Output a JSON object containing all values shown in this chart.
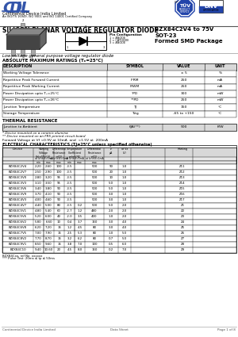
{
  "title_main": "SILICON PLANAR VOLTAGE REGULATOR DIODE",
  "title_part": "BZX84C2V4 to 75V",
  "package": "SOT-23",
  "package_sub": "Formed SMD Package",
  "company": "Continental Device India Limited",
  "company_sub": "An ISO/TS 16949, ISO 9001 and ISO 14001 Certified Company",
  "description": "Low voltage general purpose voltage regulator diode",
  "abs_max_title": "ABSOLUTE MAXIMUM RATINGS (Tₑ=25°C)",
  "abs_max_headers": [
    "DESCRIPTION",
    "SYMBOL",
    "VALUE",
    "UNIT"
  ],
  "abs_max_rows": [
    [
      "Working Voltage Tolerance",
      "",
      "± 5",
      "%"
    ],
    [
      "Repetitive Peak Forward Current",
      "IFRM",
      "250",
      "mA"
    ],
    [
      "Repetitive Peak Working Current",
      "IRWM",
      "250",
      "mA"
    ],
    [
      "Power Dissipation upto Tₑ=25°C",
      "*PD",
      "300",
      "mW"
    ],
    [
      "Power Dissipation upto Tₑ=26°C",
      "**PD",
      "250",
      "mW"
    ],
    [
      "Junction Temperature",
      "TJ",
      "150",
      "°C"
    ],
    [
      "Storage Temperature",
      "Tstg",
      "-65 to +150",
      "°C"
    ]
  ],
  "thermal_title": "THERMAL RESISTANCE",
  "thermal_row": [
    "Junction to Ambient",
    "θJA(**)",
    "500",
    "K/W"
  ],
  "note1": "* Device mounted on a ceramic alumina",
  "note2": "** Device mounted on an FR5 printed circuit board",
  "fwd_note": "Forward Voltage at Vf <0.9V at 10mA  and  <1.5V at  200mA",
  "elec_title": "ELECTRICAL CHARACTERISTICS (TJ=25°C unless specified otherwise)",
  "elec_rows": [
    [
      "BZX84C2V4",
      "2.20",
      "2.60",
      "100",
      "-3.5",
      "",
      "500",
      "90",
      "1.0",
      "Z11"
    ],
    [
      "BZX84C2V7",
      "2.50",
      "2.90",
      "100",
      "-3.5",
      "",
      "500",
      "20",
      "1.0",
      "Z12"
    ],
    [
      "BZX84C3V0",
      "2.80",
      "3.20",
      "95",
      "-3.5",
      "",
      "500",
      "10",
      "1.0",
      "Z13"
    ],
    [
      "BZX84C3V3",
      "3.10",
      "3.50",
      "95",
      "-3.5",
      "",
      "500",
      "5.0",
      "1.0",
      "Z14"
    ],
    [
      "BZX84C3V6",
      "3.40",
      "3.80",
      "90",
      "-3.5",
      "",
      "500",
      "5.0",
      "1.0",
      "Z15"
    ],
    [
      "BZX84C3V9",
      "3.70",
      "4.10",
      "90",
      "-3.5",
      "",
      "500",
      "3.0",
      "1.0",
      "Z16"
    ],
    [
      "BZX84C4V3",
      "4.00",
      "4.60",
      "90",
      "-3.5",
      "",
      "500",
      "3.0",
      "1.0",
      "Z17"
    ],
    [
      "BZX84C4V7",
      "4.40",
      "5.00",
      "80",
      "-3.5",
      "0.2",
      "500",
      "5.0",
      "2.0",
      "Z1"
    ],
    [
      "BZX84C5V1",
      "4.80",
      "5.40",
      "60",
      "-2.7",
      "1.2",
      "480",
      "2.0",
      "2.0",
      "Z2"
    ],
    [
      "BZX84C5V6",
      "5.20",
      "6.00",
      "40",
      "-2.0",
      "3.5",
      "400",
      "1.0",
      "2.0",
      "Z3"
    ],
    [
      "BZX84C6V2",
      "5.80",
      "6.60",
      "10",
      "0.4",
      "3.7",
      "150",
      "3.0",
      "4.0",
      "Z4"
    ],
    [
      "BZX84C6V8",
      "6.20",
      "7.20",
      "15",
      "1.2",
      "4.5",
      "80",
      "3.0",
      "4.0",
      "Z5"
    ],
    [
      "BZX84C7V5",
      "7.00",
      "7.90",
      "15",
      "2.5",
      "5.3",
      "80",
      "1.0",
      "5.0",
      "Z6"
    ],
    [
      "BZX84C8V2",
      "7.70",
      "8.70",
      "15",
      "3.2",
      "6.2",
      "80",
      "0.7",
      "5.0",
      "Z7"
    ],
    [
      "BZX84C9V1",
      "8.50",
      "9.60",
      "15",
      "3.8",
      "7.0",
      "100",
      "0.5",
      "6.0",
      "Z8"
    ],
    [
      "BZX84C10",
      "9.40",
      "10.60",
      "20",
      "4.5",
      "8.0",
      "150",
      "0.2",
      "7.0",
      "Z9"
    ]
  ],
  "footnote1": "BZX84Cxx, ref No. xxxxxx",
  "footnote2": "*** Pulse Test: 20ms ≤ tp ≤ 50ms",
  "footer_left": "Continental Device India Limited",
  "footer_center": "Data Sheet",
  "footer_right": "Page 1 of 8"
}
